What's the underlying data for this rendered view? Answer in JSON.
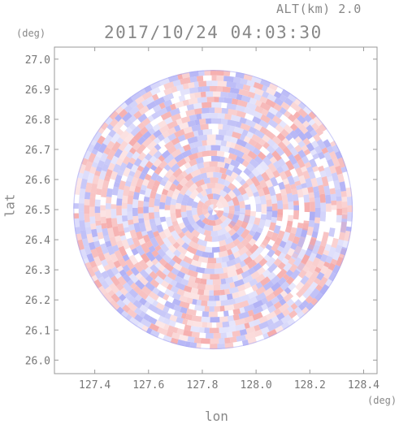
{
  "header": {
    "altitude_label": "ALT(km) 2.0",
    "datetime": "2017/10/24 04:03:30"
  },
  "chart_data": {
    "type": "heatmap",
    "title": "2017/10/24 04:03:30",
    "xlabel": "lon",
    "ylabel": "lat",
    "x_unit": "(deg)",
    "y_unit": "(deg)",
    "xlim": [
      127.25,
      128.45
    ],
    "ylim": [
      25.955,
      27.04
    ],
    "x_ticks": [
      127.4,
      127.6,
      127.8,
      128.0,
      128.2,
      128.4
    ],
    "x_tick_labels": [
      "127.4",
      "127.6",
      "127.8",
      "128.0",
      "128.2",
      "128.4"
    ],
    "y_ticks": [
      26.0,
      26.1,
      26.2,
      26.3,
      26.4,
      26.5,
      26.6,
      26.7,
      26.8,
      26.9,
      27.0
    ],
    "y_tick_labels": [
      "26.0",
      "26.1",
      "26.2",
      "26.3",
      "26.4",
      "26.5",
      "26.6",
      "26.7",
      "26.8",
      "26.9",
      "27.0"
    ],
    "radar_center": [
      127.84,
      26.5
    ],
    "radar_radius_deg": 0.52,
    "colors": {
      "positive": "#f4a3a3",
      "negative": "#a8a8f4",
      "axis": "#999999"
    },
    "grid": false,
    "legend": "none"
  }
}
